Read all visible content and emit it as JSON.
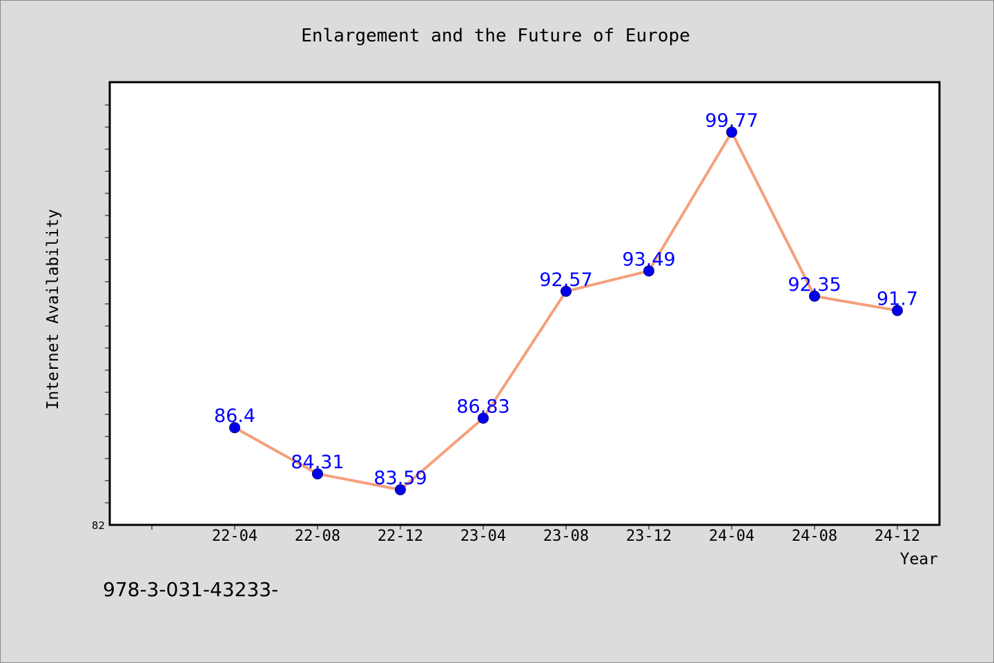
{
  "chart_data": {
    "type": "line",
    "title": "Enlargement and the Future of Europe",
    "xlabel": "Year",
    "ylabel": "Internet Availability",
    "categories": [
      "22-04",
      "22-08",
      "22-12",
      "23-04",
      "23-08",
      "23-12",
      "24-04",
      "24-08",
      "24-12"
    ],
    "series": [
      {
        "values": [
          86.4,
          84.31,
          83.59,
          86.83,
          92.57,
          93.49,
          99.77,
          92.35,
          91.7
        ],
        "labels": [
          "86.4",
          "84.31",
          "83.59",
          "86.83",
          "92.57",
          "93.49",
          "99.77",
          "92.35",
          "91.7"
        ]
      }
    ],
    "ylim": [
      82,
      102
    ],
    "yticks": [
      82
    ],
    "y_tick_label": "82",
    "data_labels": true,
    "grid": false,
    "legend": "none",
    "colors": {
      "line": "#f4a07c",
      "marker": "#0000ee",
      "marker_edge": "#000080",
      "data_label": "#0000ff",
      "plot_background": "#ffffff",
      "figure_background": "#dcdcdc"
    }
  },
  "footer": {
    "caption": "978-3-031-43233-"
  }
}
